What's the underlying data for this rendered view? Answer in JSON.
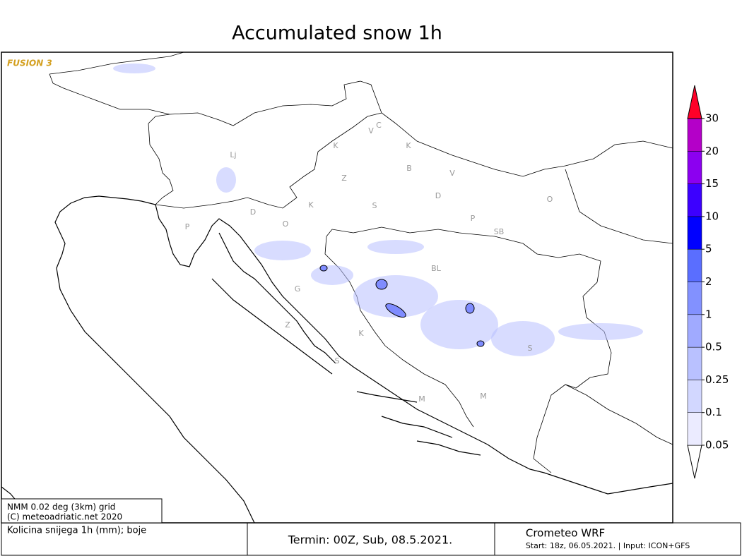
{
  "header": {
    "title": "Accumulated snow 1h",
    "logo": "FUSION 3"
  },
  "legend": {
    "levels": [
      0.05,
      0.1,
      0.25,
      0.5,
      1,
      2,
      5,
      10,
      15,
      20,
      30
    ],
    "colors": [
      "#ffffff",
      "#ebebff",
      "#d2d7ff",
      "#b9c1ff",
      "#a0aaff",
      "#8291ff",
      "#5a6eff",
      "#0000ff",
      "#3c00ff",
      "#8c00f0",
      "#b400c8",
      "#ff0028"
    ]
  },
  "places": [
    "Lj",
    "C",
    "V",
    "K",
    "K",
    "B",
    "V",
    "Z",
    "D",
    "O",
    "K",
    "S",
    "D",
    "O",
    "P",
    "P",
    "SB",
    "BL",
    "G",
    "K",
    "Z",
    "S",
    "S",
    "M",
    "M"
  ],
  "info": {
    "grid": "NMM 0.02 deg (3km) grid",
    "copyright": "(C) meteoadriatic.net 2020",
    "variable": "Kolicina snijega 1h (mm); boje"
  },
  "footer": {
    "termin": "Termin: 00Z, Sub, 08.5.2021.",
    "model": "Crometeo WRF",
    "start": "Start: 18z, 06.05.2021. | Input: ICON+GFS"
  }
}
